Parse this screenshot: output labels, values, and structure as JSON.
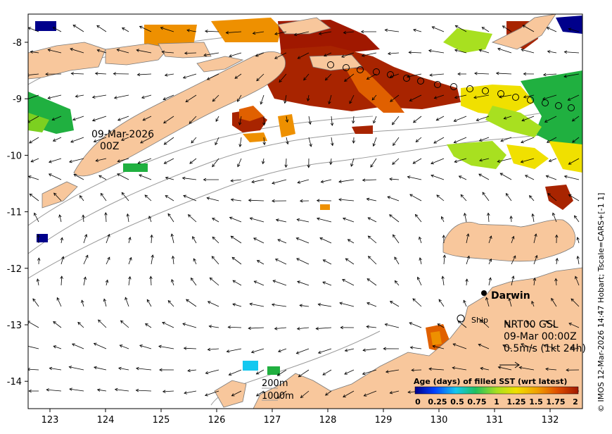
{
  "map": {
    "date_label": "09-Mar-2026",
    "time_label": "00Z",
    "product": "NRT00 GSL",
    "product_time": "09-Mar 00:00Z",
    "vector_scale": "0.5m/s (1kt 24h)",
    "depth_200": "200m",
    "depth_1000": "1000m",
    "city": "Darwin",
    "ship": "Ship",
    "credit": "© IMOS 12-Mar-2026 14:47 Hobart; Tscale=CARS+[-1 1]",
    "colorbar_title": "Age (days) of filled SST (wrt latest)",
    "colorbar_ticks": [
      "0",
      "0.25",
      "0.5",
      "0.75",
      "1",
      "1.25",
      "1.5",
      "1.75",
      "2"
    ],
    "x_ticks": [
      "123",
      "124",
      "125",
      "126",
      "127",
      "128",
      "129",
      "130",
      "131",
      "132"
    ],
    "y_ticks": [
      "-8",
      "-9",
      "-10",
      "-11",
      "-12",
      "-13",
      "-14"
    ],
    "colors": {
      "land": "#f8c79c",
      "age_0": "#00008b",
      "age_0_5": "#14c8f0",
      "age_1": "#a8e020",
      "age_1_5": "#f0a000",
      "age_2": "#a01800"
    }
  }
}
